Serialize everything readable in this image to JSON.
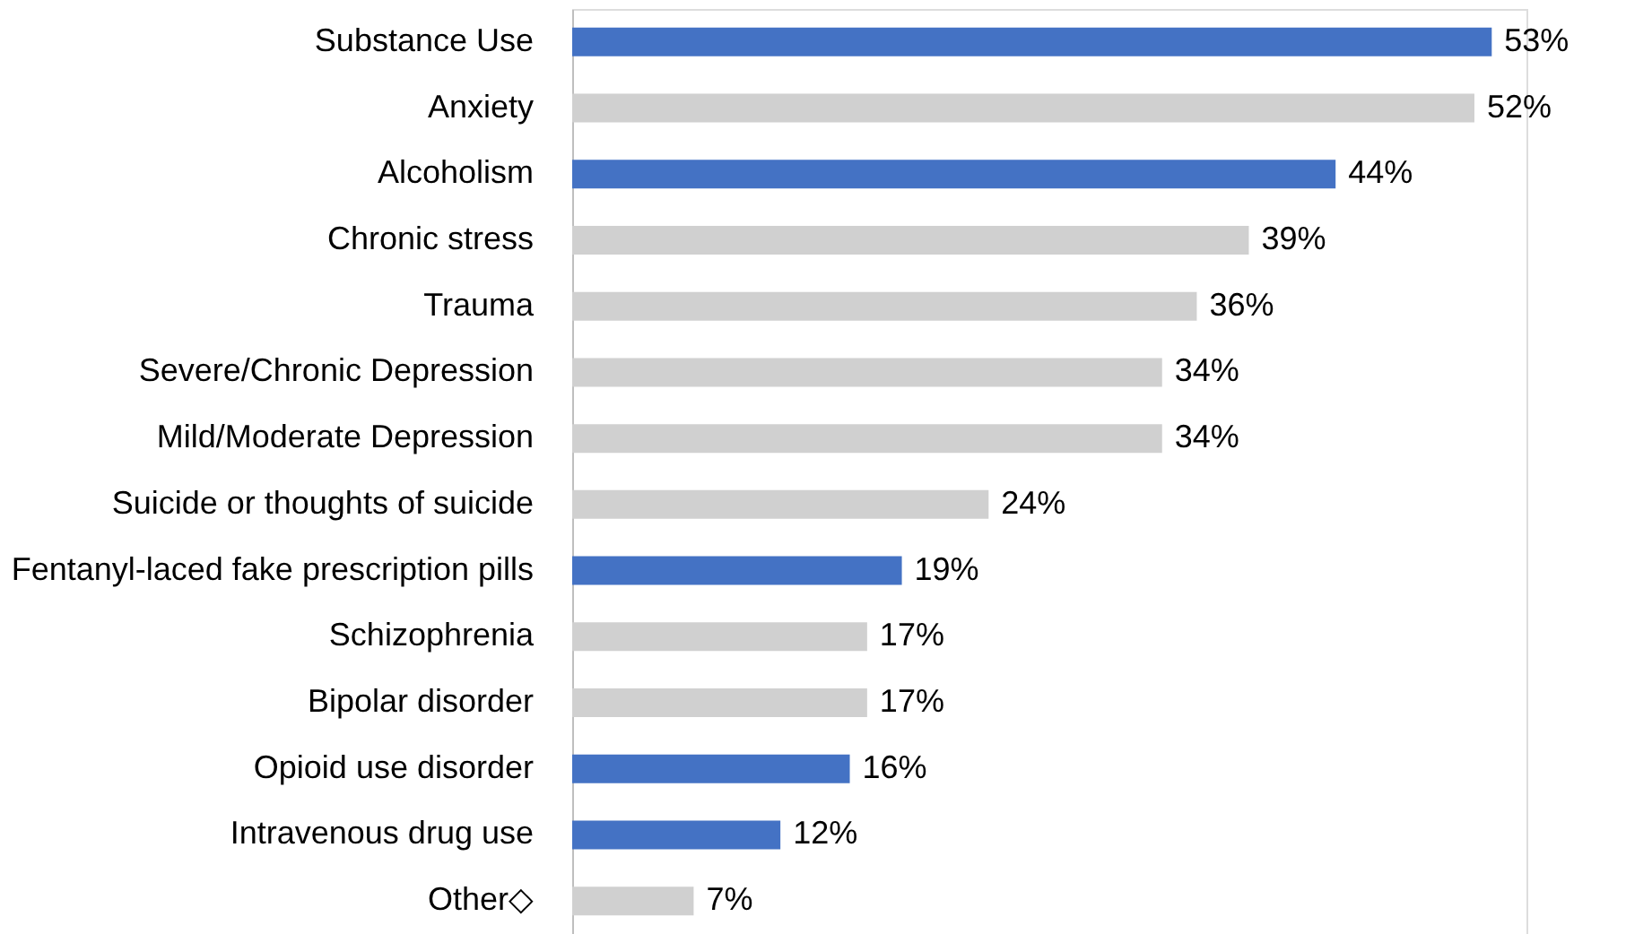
{
  "chart_data": {
    "type": "bar",
    "orientation": "horizontal",
    "categories": [
      "Substance Use",
      "Anxiety",
      "Alcoholism",
      "Chronic stress",
      "Trauma",
      "Severe/Chronic Depression",
      "Mild/Moderate Depression",
      "Suicide or thoughts of suicide",
      "Fentanyl-laced fake prescription pills",
      "Schizophrenia",
      "Bipolar disorder",
      "Opioid use disorder",
      "Intravenous drug use",
      "Other◇"
    ],
    "values": [
      53,
      52,
      44,
      39,
      36,
      34,
      34,
      24,
      19,
      17,
      17,
      16,
      12,
      7
    ],
    "value_labels": [
      "53%",
      "52%",
      "44%",
      "39%",
      "36%",
      "34%",
      "34%",
      "24%",
      "19%",
      "17%",
      "17%",
      "16%",
      "12%",
      "7%"
    ],
    "colors": [
      "#4472c4",
      "#d0d0d0",
      "#4472c4",
      "#d0d0d0",
      "#d0d0d0",
      "#d0d0d0",
      "#d0d0d0",
      "#d0d0d0",
      "#4472c4",
      "#d0d0d0",
      "#d0d0d0",
      "#4472c4",
      "#4472c4",
      "#d0d0d0"
    ],
    "tick_labels": "y",
    "grid": false
  }
}
